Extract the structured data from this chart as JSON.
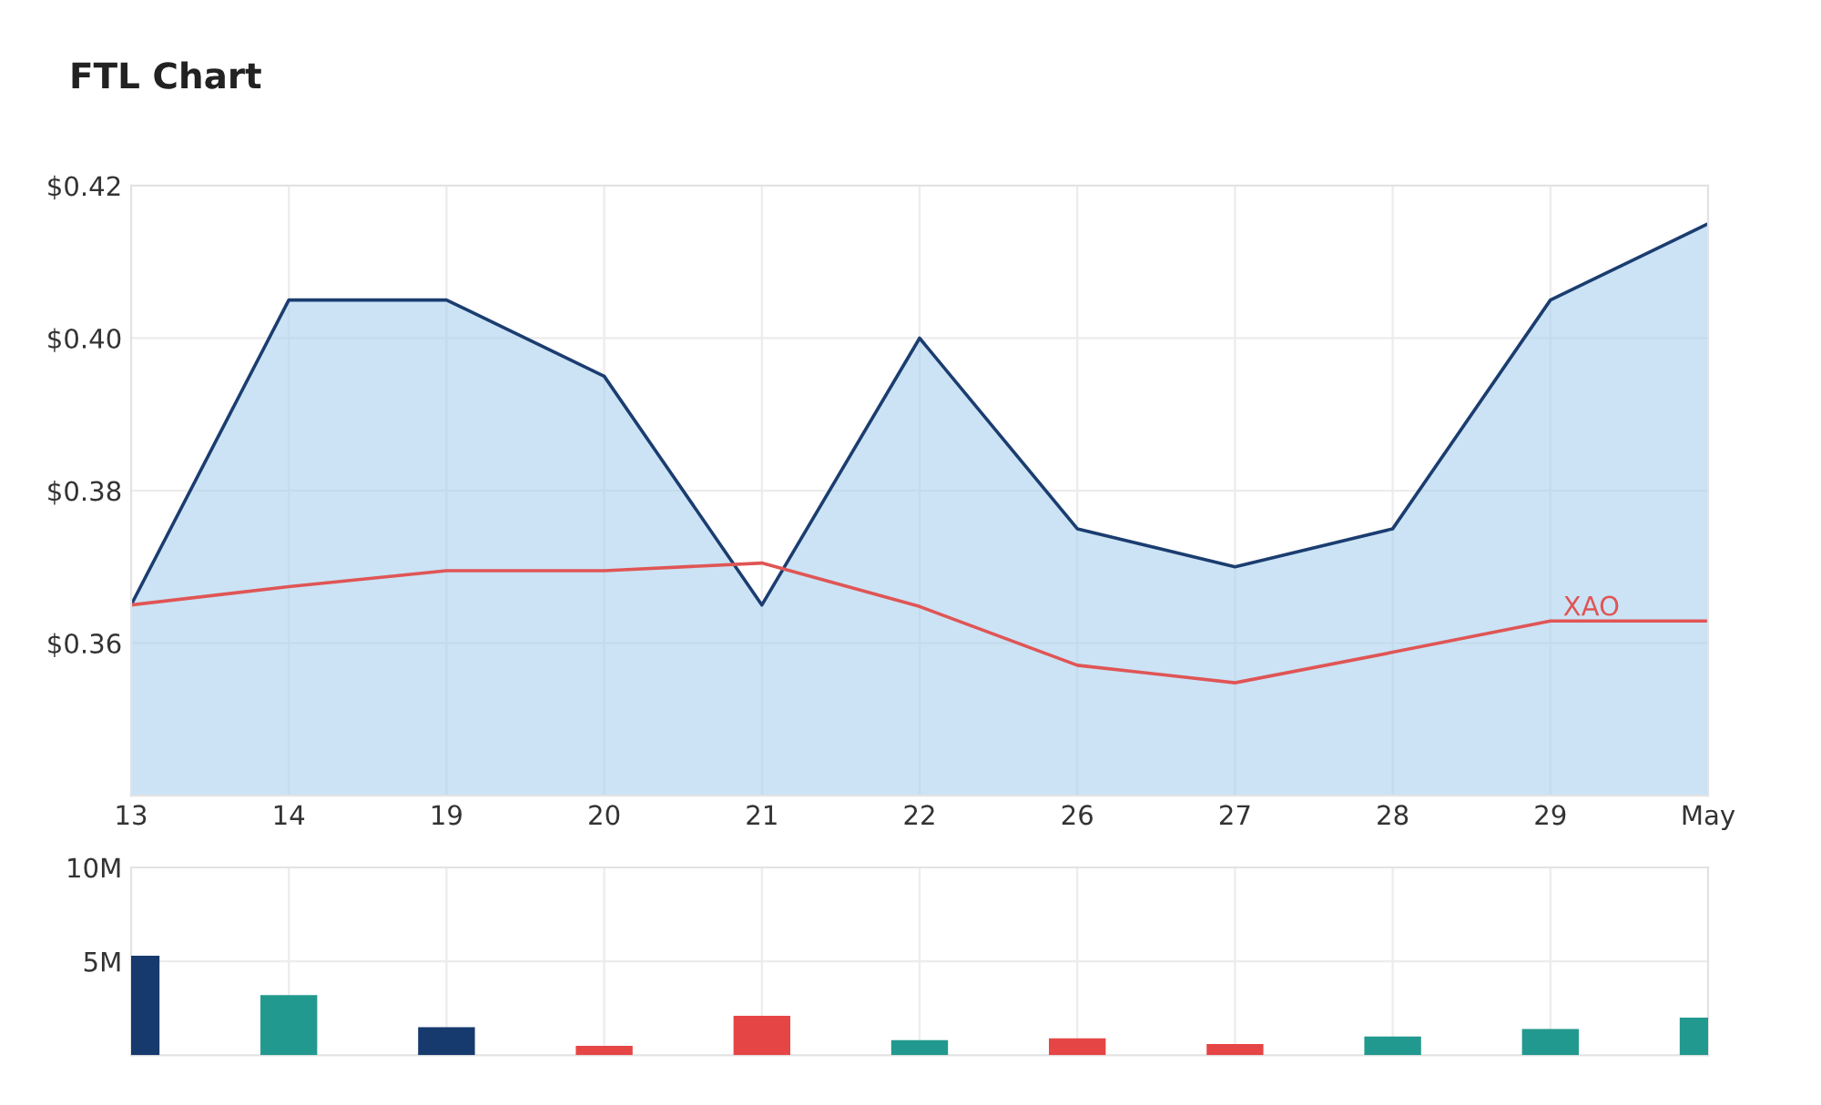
{
  "chart_data": [
    {
      "type": "area",
      "title": "FTL Chart",
      "categories": [
        "13",
        "14",
        "19",
        "20",
        "21",
        "22",
        "26",
        "27",
        "28",
        "29",
        "May"
      ],
      "series": [
        {
          "type": "area",
          "color": "#1b3d70",
          "values": [
            0.365,
            0.405,
            0.405,
            0.395,
            0.365,
            0.4,
            0.375,
            0.37,
            0.375,
            0.405,
            0.415
          ]
        },
        {
          "type": "line",
          "name": "XAO",
          "color": "#e05555",
          "values": [
            0.365,
            0.3674,
            0.3695,
            0.3695,
            0.3705,
            0.3648,
            0.3571,
            0.3548,
            0.3588,
            0.3629,
            0.3629
          ]
        }
      ],
      "ylim": [
        0.34,
        0.42
      ],
      "yticks": [
        {
          "value": 0.36,
          "label": "$0.36"
        },
        {
          "value": 0.38,
          "label": "$0.38"
        },
        {
          "value": 0.4,
          "label": "$0.40"
        },
        {
          "value": 0.42,
          "label": "$0.42"
        }
      ],
      "grid": true,
      "legend": false
    },
    {
      "type": "bar",
      "categories": [
        null,
        null,
        null,
        null,
        null,
        null,
        null,
        null,
        null,
        null,
        null
      ],
      "values": [
        5300000,
        3200000,
        1500000,
        500000,
        2100000,
        800000,
        900000,
        600000,
        1000000,
        1400000,
        2000000
      ],
      "colors": [
        "#163a6e",
        "#22998e",
        "#163a6e",
        "#e64545",
        "#e64545",
        "#22998e",
        "#e64545",
        "#e64545",
        "#22998e",
        "#22998e",
        "#22998e"
      ],
      "ylim": [
        0,
        10000000
      ],
      "yticks": [
        {
          "value": 5000000,
          "label": "5M"
        },
        {
          "value": 10000000,
          "label": "10M"
        }
      ],
      "grid": true,
      "tick_labels": "y"
    }
  ]
}
